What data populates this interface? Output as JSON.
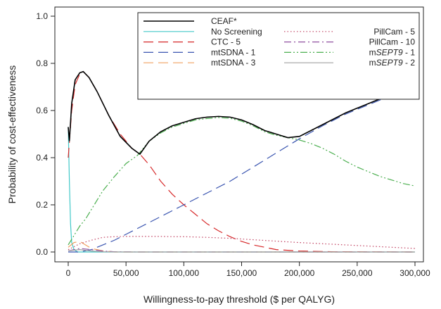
{
  "chart_data": {
    "type": "line",
    "title": "",
    "xlabel": "Willingness-to-pay threshold ($ per QALYG)",
    "ylabel": "Probability of cost-effectiveness",
    "xlim": [
      0,
      300000
    ],
    "ylim": [
      0,
      1.0
    ],
    "x_ticks": [
      0,
      50000,
      100000,
      150000,
      200000,
      250000,
      300000
    ],
    "x_tick_labels": [
      "0",
      "50,000",
      "100,000",
      "150,000",
      "200,000",
      "250,000",
      "300,000"
    ],
    "y_ticks": [
      0,
      0.2,
      0.4,
      0.6,
      0.8,
      1.0
    ],
    "y_tick_labels": [
      "0.0",
      "0.2",
      "0.4",
      "0.6",
      "0.8",
      "1.0"
    ],
    "grid": false,
    "legend_position": "top-right",
    "series": [
      {
        "name": "CEAF*",
        "color": "#000000",
        "dash": "solid",
        "points": [
          [
            0,
            0.53
          ],
          [
            1000,
            0.47
          ],
          [
            3000,
            0.63
          ],
          [
            6000,
            0.73
          ],
          [
            10000,
            0.76
          ],
          [
            13000,
            0.765
          ],
          [
            18000,
            0.74
          ],
          [
            25000,
            0.68
          ],
          [
            35000,
            0.58
          ],
          [
            45000,
            0.49
          ],
          [
            55000,
            0.44
          ],
          [
            62000,
            0.415
          ],
          [
            70000,
            0.47
          ],
          [
            80000,
            0.51
          ],
          [
            90000,
            0.535
          ],
          [
            100000,
            0.55
          ],
          [
            110000,
            0.565
          ],
          [
            120000,
            0.572
          ],
          [
            130000,
            0.575
          ],
          [
            140000,
            0.572
          ],
          [
            150000,
            0.56
          ],
          [
            160000,
            0.54
          ],
          [
            170000,
            0.515
          ],
          [
            180000,
            0.5
          ],
          [
            190000,
            0.485
          ],
          [
            200000,
            0.49
          ],
          [
            220000,
            0.54
          ],
          [
            240000,
            0.59
          ],
          [
            260000,
            0.63
          ],
          [
            280000,
            0.67
          ],
          [
            300000,
            0.71
          ]
        ]
      },
      {
        "name": "No Screening",
        "color": "#40c8c8",
        "dash": "solid",
        "points": [
          [
            0,
            0.53
          ],
          [
            1000,
            0.3
          ],
          [
            2000,
            0.12
          ],
          [
            3000,
            0.04
          ],
          [
            5000,
            0.01
          ],
          [
            8000,
            0.0
          ],
          [
            300000,
            0.0
          ]
        ]
      },
      {
        "name": "CTC - 5",
        "color": "#d62728",
        "dash": "long-dash",
        "points": [
          [
            0,
            0.4
          ],
          [
            3000,
            0.6
          ],
          [
            6000,
            0.71
          ],
          [
            10000,
            0.755
          ],
          [
            13000,
            0.765
          ],
          [
            18000,
            0.74
          ],
          [
            25000,
            0.68
          ],
          [
            35000,
            0.58
          ],
          [
            45000,
            0.5
          ],
          [
            55000,
            0.44
          ],
          [
            62000,
            0.415
          ],
          [
            70000,
            0.37
          ],
          [
            80000,
            0.3
          ],
          [
            90000,
            0.245
          ],
          [
            100000,
            0.2
          ],
          [
            110000,
            0.16
          ],
          [
            120000,
            0.12
          ],
          [
            130000,
            0.09
          ],
          [
            140000,
            0.065
          ],
          [
            150000,
            0.045
          ],
          [
            160000,
            0.03
          ],
          [
            170000,
            0.02
          ],
          [
            180000,
            0.01
          ],
          [
            200000,
            0.004
          ],
          [
            230000,
            0.001
          ],
          [
            300000,
            0.0
          ]
        ]
      },
      {
        "name": "mtSDNA - 1",
        "color": "#3a55b0",
        "dash": "long-dash",
        "points": [
          [
            0,
            0.0
          ],
          [
            10000,
            0.0
          ],
          [
            20000,
            0.01
          ],
          [
            30000,
            0.03
          ],
          [
            40000,
            0.05
          ],
          [
            50000,
            0.075
          ],
          [
            60000,
            0.1
          ],
          [
            70000,
            0.125
          ],
          [
            80000,
            0.15
          ],
          [
            90000,
            0.175
          ],
          [
            100000,
            0.2
          ],
          [
            110000,
            0.225
          ],
          [
            120000,
            0.25
          ],
          [
            130000,
            0.275
          ],
          [
            140000,
            0.3
          ],
          [
            150000,
            0.33
          ],
          [
            160000,
            0.36
          ],
          [
            170000,
            0.39
          ],
          [
            180000,
            0.42
          ],
          [
            190000,
            0.45
          ],
          [
            200000,
            0.48
          ],
          [
            220000,
            0.535
          ],
          [
            240000,
            0.585
          ],
          [
            260000,
            0.625
          ],
          [
            280000,
            0.665
          ],
          [
            300000,
            0.705
          ]
        ]
      },
      {
        "name": "mtSDNA - 3",
        "color": "#f0a060",
        "dash": "long-dash",
        "points": [
          [
            0,
            0.02
          ],
          [
            5000,
            0.04
          ],
          [
            10000,
            0.045
          ],
          [
            15000,
            0.03
          ],
          [
            20000,
            0.015
          ],
          [
            30000,
            0.005
          ],
          [
            40000,
            0.0
          ],
          [
            300000,
            0.0
          ]
        ]
      },
      {
        "name": "PillCam - 5",
        "color": "#c04060",
        "dash": "dotted",
        "points": [
          [
            0,
            0.01
          ],
          [
            10000,
            0.035
          ],
          [
            20000,
            0.05
          ],
          [
            30000,
            0.062
          ],
          [
            40000,
            0.065
          ],
          [
            50000,
            0.066
          ],
          [
            60000,
            0.066
          ],
          [
            70000,
            0.066
          ],
          [
            80000,
            0.066
          ],
          [
            90000,
            0.065
          ],
          [
            100000,
            0.065
          ],
          [
            120000,
            0.062
          ],
          [
            140000,
            0.058
          ],
          [
            160000,
            0.052
          ],
          [
            180000,
            0.046
          ],
          [
            200000,
            0.04
          ],
          [
            220000,
            0.035
          ],
          [
            240000,
            0.03
          ],
          [
            260000,
            0.025
          ],
          [
            280000,
            0.02
          ],
          [
            300000,
            0.015
          ]
        ]
      },
      {
        "name": "PillCam - 10",
        "color": "#9050a0",
        "dash": "dash-dot",
        "points": [
          [
            0,
            0.005
          ],
          [
            10000,
            0.015
          ],
          [
            20000,
            0.01
          ],
          [
            30000,
            0.004
          ],
          [
            40000,
            0.001
          ],
          [
            60000,
            0.0
          ],
          [
            300000,
            0.0
          ]
        ]
      },
      {
        "name": "mSEPT9 - 1",
        "color": "#4caf50",
        "dash": "dash-dot-dot",
        "points": [
          [
            0,
            0.03
          ],
          [
            5000,
            0.07
          ],
          [
            10000,
            0.11
          ],
          [
            15000,
            0.14
          ],
          [
            20000,
            0.18
          ],
          [
            30000,
            0.26
          ],
          [
            40000,
            0.32
          ],
          [
            50000,
            0.375
          ],
          [
            60000,
            0.41
          ],
          [
            70000,
            0.47
          ],
          [
            80000,
            0.505
          ],
          [
            90000,
            0.53
          ],
          [
            100000,
            0.545
          ],
          [
            110000,
            0.56
          ],
          [
            120000,
            0.566
          ],
          [
            130000,
            0.57
          ],
          [
            140000,
            0.567
          ],
          [
            150000,
            0.555
          ],
          [
            160000,
            0.535
          ],
          [
            170000,
            0.51
          ],
          [
            180000,
            0.495
          ],
          [
            190000,
            0.485
          ],
          [
            200000,
            0.475
          ],
          [
            210000,
            0.46
          ],
          [
            220000,
            0.44
          ],
          [
            230000,
            0.415
          ],
          [
            240000,
            0.385
          ],
          [
            250000,
            0.36
          ],
          [
            260000,
            0.34
          ],
          [
            270000,
            0.32
          ],
          [
            280000,
            0.305
          ],
          [
            290000,
            0.29
          ],
          [
            300000,
            0.28
          ]
        ]
      },
      {
        "name": "mSEPT9 - 2",
        "color": "#a0a0a0",
        "dash": "solid",
        "points": [
          [
            0,
            0.005
          ],
          [
            10000,
            0.01
          ],
          [
            20000,
            0.004
          ],
          [
            30000,
            0.001
          ],
          [
            50000,
            0.0
          ],
          [
            300000,
            0.0
          ]
        ]
      }
    ]
  }
}
